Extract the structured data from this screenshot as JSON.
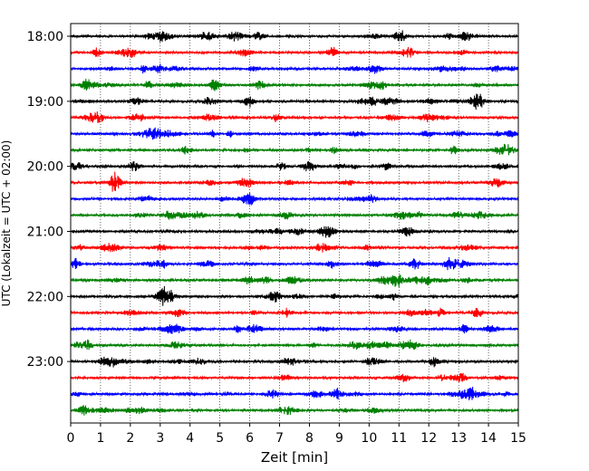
{
  "chart_data": {
    "type": "line",
    "title": "",
    "xlabel": "Zeit  [min]",
    "ylabel": "UTC (Lokalzeit = UTC + 02:00)",
    "xlim": [
      0,
      15
    ],
    "x_ticks": [
      "0",
      "1",
      "2",
      "3",
      "4",
      "5",
      "6",
      "7",
      "8",
      "9",
      "10",
      "11",
      "12",
      "13",
      "14",
      "15"
    ],
    "y_tick_labels": [
      "18:00",
      "19:00",
      "20:00",
      "21:00",
      "22:00",
      "23:00"
    ],
    "row_interval_minutes": 15,
    "start_time": "18:00",
    "row_count": 24,
    "grid": "vertical dotted at each minute",
    "colors": [
      "#000000",
      "#ff0000",
      "#0000ff",
      "#008000"
    ]
  }
}
